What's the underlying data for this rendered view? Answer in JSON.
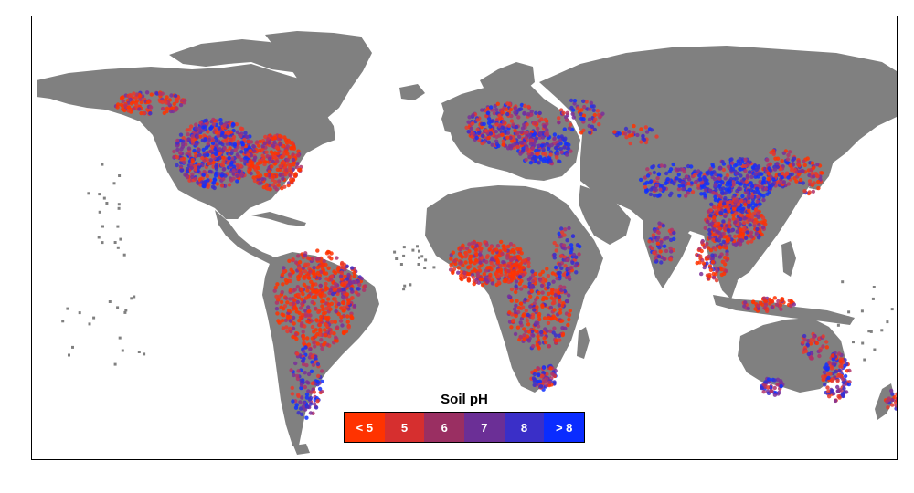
{
  "map": {
    "land_color": "#808080",
    "ocean_color": "#ffffff",
    "point_colors": [
      "#ff3300",
      "#e63a2c",
      "#b0326a",
      "#7a2f9a",
      "#3a2fcc",
      "#1030ff"
    ]
  },
  "legend": {
    "title": "Soil pH",
    "bins": [
      {
        "label": "< 5",
        "color": "#ff3300"
      },
      {
        "label": "5",
        "color": "#d62f2f"
      },
      {
        "label": "6",
        "color": "#9a2f62"
      },
      {
        "label": "7",
        "color": "#6b2f96"
      },
      {
        "label": "8",
        "color": "#3a2fc8"
      },
      {
        "label": "> 8",
        "color": "#0a2cff"
      }
    ]
  }
}
